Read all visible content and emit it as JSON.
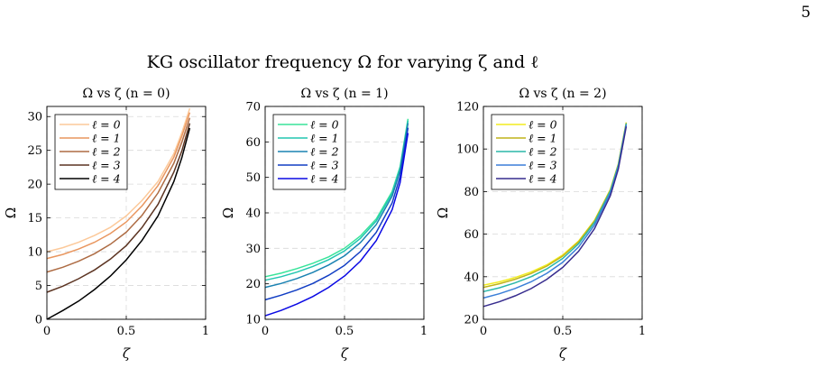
{
  "page": {
    "number": "5"
  },
  "figure": {
    "title": "KG oscillator frequency Ω for varying ζ and ℓ"
  },
  "chart_data": [
    {
      "type": "line",
      "title": "Ω vs ζ (n = 0)",
      "xlabel": "ζ",
      "ylabel": "Ω",
      "xlim": [
        0,
        1
      ],
      "ylim": [
        0,
        31.5
      ],
      "xticks": [
        0,
        0.5,
        1
      ],
      "xtick_labels": [
        "0",
        "0.5",
        "1"
      ],
      "yticks": [
        0,
        5,
        10,
        15,
        20,
        25,
        30
      ],
      "ytick_labels": [
        "0",
        "5",
        "10",
        "15",
        "20",
        "25",
        "30"
      ],
      "grid": true,
      "legend": "top-left",
      "x": [
        0,
        0.1,
        0.2,
        0.3,
        0.4,
        0.5,
        0.6,
        0.7,
        0.8,
        0.85,
        0.9
      ],
      "series": [
        {
          "name": "ℓ = 0",
          "color": "#fcc99a",
          "values": [
            10.0,
            10.6,
            11.4,
            12.4,
            13.6,
            15.3,
            17.6,
            20.4,
            24.5,
            27.6,
            31.2
          ]
        },
        {
          "name": "ℓ = 1",
          "color": "#e9965f",
          "values": [
            9.0,
            9.6,
            10.4,
            11.4,
            12.7,
            14.4,
            16.8,
            19.8,
            24.0,
            27.1,
            30.6
          ]
        },
        {
          "name": "ℓ = 2",
          "color": "#ae6c44",
          "values": [
            7.0,
            7.7,
            8.6,
            9.7,
            11.1,
            12.9,
            15.4,
            18.7,
            23.1,
            26.2,
            29.8
          ]
        },
        {
          "name": "ℓ = 3",
          "color": "#5c3422",
          "values": [
            4.0,
            4.9,
            6.0,
            7.3,
            8.9,
            10.9,
            13.6,
            17.0,
            21.8,
            24.9,
            29.0
          ]
        },
        {
          "name": "ℓ = 4",
          "color": "#000000",
          "values": [
            0.0,
            1.3,
            2.7,
            4.4,
            6.4,
            8.8,
            11.7,
            15.3,
            20.4,
            23.9,
            28.3
          ]
        }
      ]
    },
    {
      "type": "line",
      "title": "Ω vs ζ (n = 1)",
      "xlabel": "ζ",
      "ylabel": "Ω",
      "xlim": [
        0,
        1
      ],
      "ylim": [
        10,
        70
      ],
      "xticks": [
        0,
        0.5,
        1
      ],
      "xtick_labels": [
        "0",
        "0.5",
        "1"
      ],
      "yticks": [
        10,
        20,
        30,
        40,
        50,
        60,
        70
      ],
      "ytick_labels": [
        "10",
        "20",
        "30",
        "40",
        "50",
        "60",
        "70"
      ],
      "grid": true,
      "legend": "top-left",
      "x": [
        0,
        0.1,
        0.2,
        0.3,
        0.4,
        0.5,
        0.6,
        0.7,
        0.8,
        0.85,
        0.9
      ],
      "series": [
        {
          "name": "ℓ = 0",
          "color": "#38e49a",
          "values": [
            22.0,
            23.0,
            24.3,
            25.8,
            27.6,
            30.0,
            33.5,
            38.3,
            46.0,
            53.0,
            66.5
          ]
        },
        {
          "name": "ℓ = 1",
          "color": "#22c6b0",
          "values": [
            21.0,
            22.0,
            23.3,
            24.9,
            26.8,
            29.3,
            32.8,
            37.7,
            45.5,
            52.6,
            66.0
          ]
        },
        {
          "name": "ℓ = 2",
          "color": "#1a82b2",
          "values": [
            19.0,
            20.1,
            21.5,
            23.2,
            25.3,
            27.9,
            31.6,
            36.7,
            44.7,
            51.8,
            65.3
          ]
        },
        {
          "name": "ℓ = 3",
          "color": "#123ec4",
          "values": [
            15.5,
            16.8,
            18.3,
            20.1,
            22.4,
            25.2,
            29.1,
            34.5,
            42.8,
            50.2,
            64.0
          ]
        },
        {
          "name": "ℓ = 4",
          "color": "#0a08e4",
          "values": [
            11.0,
            12.5,
            14.3,
            16.4,
            19.0,
            22.2,
            26.4,
            32.2,
            40.9,
            48.5,
            62.5
          ]
        }
      ]
    },
    {
      "type": "line",
      "title": "Ω vs ζ (n = 2)",
      "xlabel": "ζ",
      "ylabel": "Ω",
      "xlim": [
        0,
        1
      ],
      "ylim": [
        20,
        120
      ],
      "xticks": [
        0,
        0.5,
        1
      ],
      "xtick_labels": [
        "0",
        "0.5",
        "1"
      ],
      "yticks": [
        20,
        40,
        60,
        80,
        100,
        120
      ],
      "ytick_labels": [
        "20",
        "40",
        "60",
        "80",
        "100",
        "120"
      ],
      "grid": true,
      "legend": "top-left",
      "x": [
        0,
        0.1,
        0.2,
        0.3,
        0.4,
        0.5,
        0.6,
        0.7,
        0.8,
        0.85,
        0.9
      ],
      "series": [
        {
          "name": "ℓ = 0",
          "color": "#f2ec1e",
          "values": [
            36.0,
            37.6,
            39.6,
            42.2,
            45.6,
            50.2,
            56.8,
            66.5,
            81.0,
            93.0,
            112.5
          ]
        },
        {
          "name": "ℓ = 1",
          "color": "#c0b41a",
          "values": [
            35.0,
            36.7,
            38.8,
            41.5,
            45.0,
            49.7,
            56.4,
            66.2,
            80.8,
            92.8,
            112.3
          ]
        },
        {
          "name": "ℓ = 2",
          "color": "#2ab7a9",
          "values": [
            33.0,
            34.8,
            37.1,
            40.0,
            43.7,
            48.6,
            55.5,
            65.5,
            80.3,
            92.4,
            112.0
          ]
        },
        {
          "name": "ℓ = 3",
          "color": "#3b7fd8",
          "values": [
            30.0,
            32.0,
            34.5,
            37.6,
            41.6,
            46.8,
            54.0,
            64.3,
            79.4,
            91.6,
            111.4
          ]
        },
        {
          "name": "ℓ = 4",
          "color": "#372c8e",
          "values": [
            26.0,
            28.2,
            31.0,
            34.4,
            38.8,
            44.4,
            52.0,
            62.6,
            78.1,
            90.6,
            110.6
          ]
        }
      ]
    }
  ]
}
